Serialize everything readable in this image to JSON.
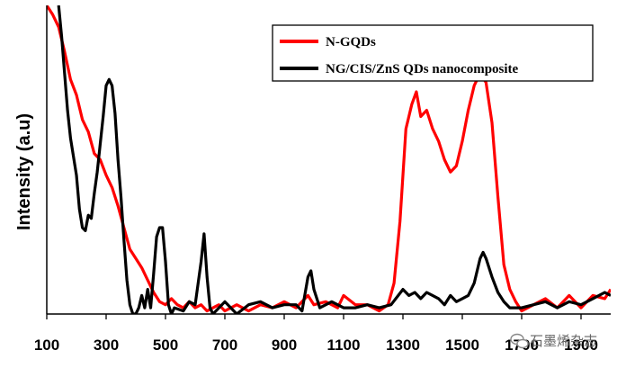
{
  "chart_data": {
    "type": "line",
    "title": "",
    "xlabel": "",
    "ylabel": "Intensity (a.u)",
    "xlim": [
      100,
      2000
    ],
    "ylim": [
      0,
      100
    ],
    "x_ticks": [
      100,
      300,
      500,
      700,
      900,
      1100,
      1300,
      1500,
      1700,
      1900
    ],
    "x_tick_labels": [
      "100",
      "300",
      "500",
      "700",
      "900",
      "1100",
      "1300",
      "1500",
      "1700",
      "1900"
    ],
    "grid": false,
    "legend_position": "top-right",
    "series": [
      {
        "name": "N-GQDs",
        "color": "#ff0000",
        "points": [
          [
            100,
            100
          ],
          [
            120,
            97
          ],
          [
            140,
            93
          ],
          [
            160,
            85
          ],
          [
            180,
            76
          ],
          [
            200,
            71
          ],
          [
            220,
            63
          ],
          [
            240,
            59
          ],
          [
            260,
            52
          ],
          [
            280,
            50
          ],
          [
            300,
            45
          ],
          [
            320,
            41
          ],
          [
            340,
            35
          ],
          [
            360,
            28
          ],
          [
            380,
            21
          ],
          [
            400,
            18
          ],
          [
            420,
            15
          ],
          [
            440,
            11
          ],
          [
            460,
            7
          ],
          [
            480,
            4
          ],
          [
            500,
            3
          ],
          [
            520,
            5
          ],
          [
            540,
            3
          ],
          [
            560,
            2
          ],
          [
            580,
            4
          ],
          [
            600,
            2
          ],
          [
            620,
            3
          ],
          [
            640,
            1
          ],
          [
            660,
            2
          ],
          [
            680,
            3
          ],
          [
            700,
            1
          ],
          [
            740,
            3
          ],
          [
            780,
            1
          ],
          [
            820,
            3
          ],
          [
            860,
            2
          ],
          [
            900,
            4
          ],
          [
            940,
            2
          ],
          [
            980,
            6
          ],
          [
            1000,
            3
          ],
          [
            1040,
            4
          ],
          [
            1080,
            2
          ],
          [
            1100,
            6
          ],
          [
            1140,
            3
          ],
          [
            1180,
            3
          ],
          [
            1220,
            1
          ],
          [
            1250,
            3
          ],
          [
            1270,
            10
          ],
          [
            1290,
            30
          ],
          [
            1310,
            60
          ],
          [
            1330,
            68
          ],
          [
            1345,
            72
          ],
          [
            1360,
            64
          ],
          [
            1380,
            66
          ],
          [
            1400,
            60
          ],
          [
            1420,
            56
          ],
          [
            1440,
            50
          ],
          [
            1460,
            46
          ],
          [
            1480,
            48
          ],
          [
            1500,
            56
          ],
          [
            1520,
            66
          ],
          [
            1540,
            74
          ],
          [
            1560,
            78
          ],
          [
            1580,
            75
          ],
          [
            1600,
            62
          ],
          [
            1620,
            38
          ],
          [
            1640,
            16
          ],
          [
            1660,
            8
          ],
          [
            1680,
            4
          ],
          [
            1700,
            1
          ],
          [
            1740,
            3
          ],
          [
            1780,
            5
          ],
          [
            1820,
            2
          ],
          [
            1860,
            6
          ],
          [
            1900,
            2
          ],
          [
            1940,
            6
          ],
          [
            1980,
            5
          ],
          [
            2000,
            8
          ]
        ]
      },
      {
        "name": "NG/CIS/ZnS QDs nanocomposite",
        "color": "#000000",
        "points": [
          [
            140,
            100
          ],
          [
            150,
            90
          ],
          [
            160,
            78
          ],
          [
            170,
            66
          ],
          [
            180,
            57
          ],
          [
            190,
            51
          ],
          [
            200,
            45
          ],
          [
            210,
            34
          ],
          [
            220,
            28
          ],
          [
            230,
            27
          ],
          [
            240,
            32
          ],
          [
            250,
            31
          ],
          [
            260,
            39
          ],
          [
            270,
            46
          ],
          [
            280,
            55
          ],
          [
            290,
            64
          ],
          [
            300,
            74
          ],
          [
            310,
            76
          ],
          [
            320,
            74
          ],
          [
            330,
            65
          ],
          [
            340,
            50
          ],
          [
            350,
            38
          ],
          [
            360,
            24
          ],
          [
            370,
            11
          ],
          [
            380,
            3
          ],
          [
            390,
            0
          ],
          [
            400,
            0
          ],
          [
            410,
            2
          ],
          [
            420,
            6
          ],
          [
            430,
            2
          ],
          [
            440,
            8
          ],
          [
            450,
            2
          ],
          [
            460,
            13
          ],
          [
            470,
            25
          ],
          [
            480,
            28
          ],
          [
            490,
            28
          ],
          [
            500,
            17
          ],
          [
            510,
            3
          ],
          [
            520,
            0
          ],
          [
            530,
            2
          ],
          [
            560,
            1
          ],
          [
            580,
            4
          ],
          [
            600,
            3
          ],
          [
            620,
            17
          ],
          [
            630,
            26
          ],
          [
            640,
            12
          ],
          [
            650,
            2
          ],
          [
            660,
            0
          ],
          [
            700,
            4
          ],
          [
            740,
            0
          ],
          [
            780,
            3
          ],
          [
            820,
            4
          ],
          [
            860,
            2
          ],
          [
            900,
            3
          ],
          [
            940,
            3
          ],
          [
            960,
            1
          ],
          [
            980,
            12
          ],
          [
            990,
            14
          ],
          [
            1000,
            8
          ],
          [
            1020,
            2
          ],
          [
            1060,
            4
          ],
          [
            1100,
            2
          ],
          [
            1140,
            2
          ],
          [
            1180,
            3
          ],
          [
            1220,
            2
          ],
          [
            1260,
            3
          ],
          [
            1300,
            8
          ],
          [
            1320,
            6
          ],
          [
            1340,
            7
          ],
          [
            1360,
            5
          ],
          [
            1380,
            7
          ],
          [
            1400,
            6
          ],
          [
            1420,
            5
          ],
          [
            1440,
            3
          ],
          [
            1460,
            6
          ],
          [
            1480,
            4
          ],
          [
            1500,
            5
          ],
          [
            1520,
            6
          ],
          [
            1540,
            10
          ],
          [
            1560,
            18
          ],
          [
            1570,
            20
          ],
          [
            1580,
            18
          ],
          [
            1600,
            12
          ],
          [
            1620,
            7
          ],
          [
            1640,
            4
          ],
          [
            1660,
            2
          ],
          [
            1700,
            2
          ],
          [
            1740,
            3
          ],
          [
            1780,
            4
          ],
          [
            1820,
            2
          ],
          [
            1860,
            4
          ],
          [
            1900,
            3
          ],
          [
            1940,
            5
          ],
          [
            1980,
            7
          ],
          [
            2000,
            6
          ]
        ]
      }
    ]
  },
  "watermark": {
    "text": "石墨烯杂志",
    "icon": "wechat-icon"
  }
}
